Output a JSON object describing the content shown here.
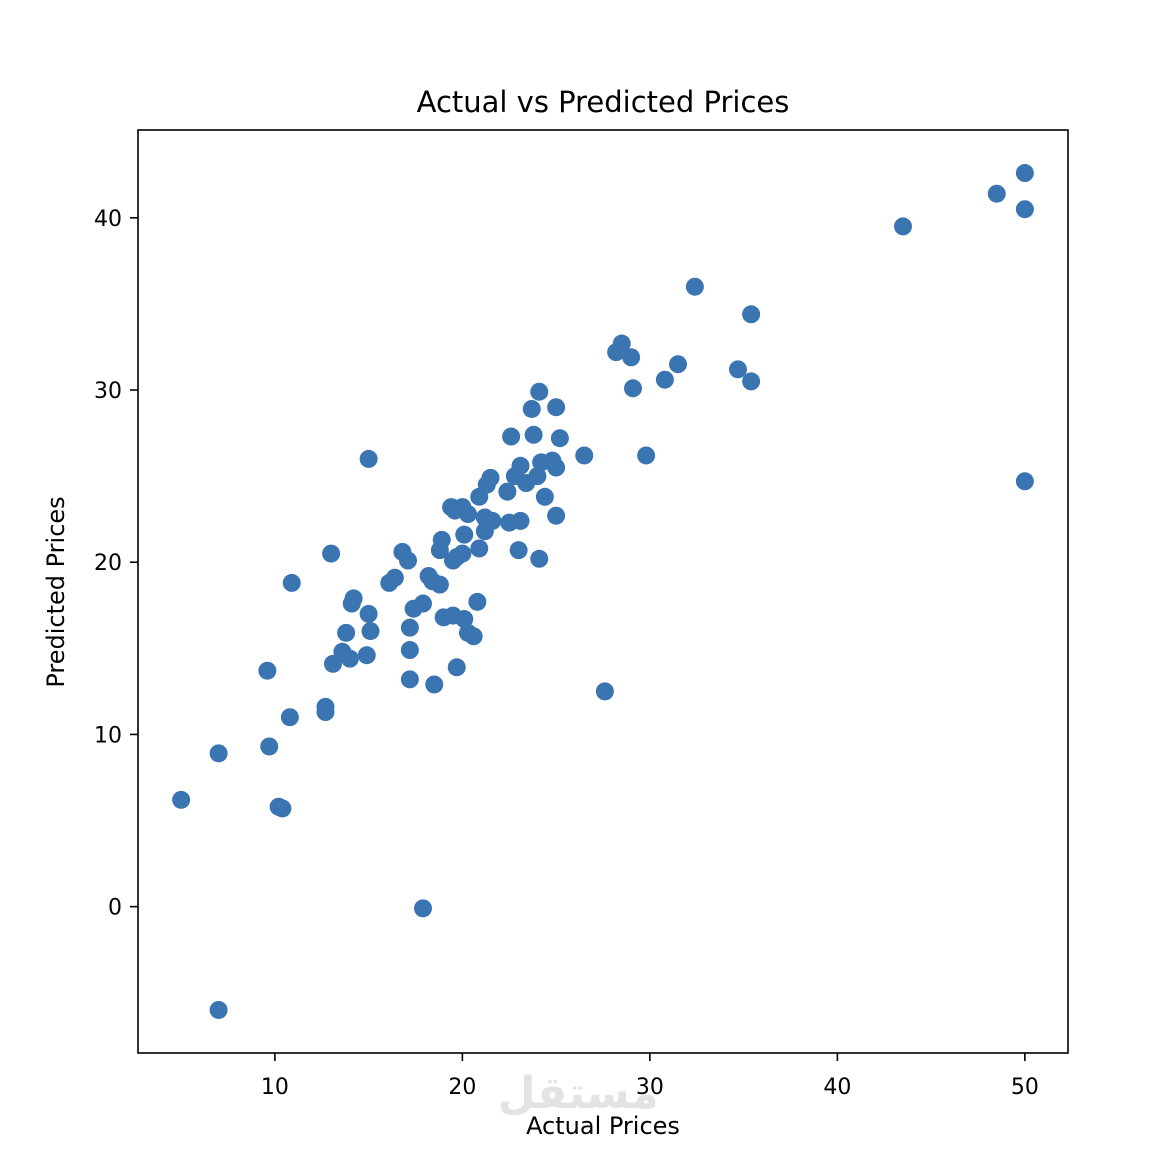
{
  "chart_data": {
    "type": "scatter",
    "title": "Actual vs Predicted Prices",
    "xlabel": "Actual Prices",
    "ylabel": "Predicted Prices",
    "xlim": [
      2.7,
      52.3
    ],
    "ylim": [
      -8.5,
      45.1
    ],
    "xticks": [
      10,
      20,
      30,
      40,
      50
    ],
    "yticks": [
      0,
      10,
      20,
      30,
      40
    ],
    "grid": false,
    "marker_color": "#3a74b1",
    "series": [
      {
        "points": [
          [
            50.0,
            42.6
          ],
          [
            48.5,
            41.4
          ],
          [
            50.0,
            40.5
          ],
          [
            43.5,
            39.5
          ],
          [
            50.0,
            24.7
          ],
          [
            32.4,
            36.0
          ],
          [
            35.4,
            34.4
          ],
          [
            28.5,
            32.7
          ],
          [
            28.2,
            32.2
          ],
          [
            29.0,
            31.9
          ],
          [
            31.5,
            31.5
          ],
          [
            34.7,
            31.2
          ],
          [
            30.8,
            30.6
          ],
          [
            35.4,
            30.5
          ],
          [
            29.1,
            30.1
          ],
          [
            29.8,
            26.2
          ],
          [
            26.5,
            26.2
          ],
          [
            27.6,
            12.5
          ],
          [
            24.1,
            29.9
          ],
          [
            23.7,
            28.9
          ],
          [
            25.0,
            29.0
          ],
          [
            23.8,
            27.4
          ],
          [
            22.6,
            27.3
          ],
          [
            25.2,
            27.2
          ],
          [
            24.8,
            25.9
          ],
          [
            24.2,
            25.8
          ],
          [
            23.1,
            25.6
          ],
          [
            25.0,
            25.5
          ],
          [
            22.8,
            25.0
          ],
          [
            23.4,
            24.6
          ],
          [
            24.0,
            25.0
          ],
          [
            21.5,
            24.9
          ],
          [
            21.3,
            24.5
          ],
          [
            22.4,
            24.1
          ],
          [
            20.9,
            23.8
          ],
          [
            24.4,
            23.8
          ],
          [
            19.4,
            23.2
          ],
          [
            19.6,
            23.0
          ],
          [
            20.0,
            23.2
          ],
          [
            20.3,
            22.8
          ],
          [
            21.2,
            22.6
          ],
          [
            21.6,
            22.4
          ],
          [
            22.5,
            22.3
          ],
          [
            23.1,
            22.4
          ],
          [
            25.0,
            22.7
          ],
          [
            20.1,
            21.6
          ],
          [
            21.2,
            21.8
          ],
          [
            18.9,
            21.3
          ],
          [
            18.8,
            20.7
          ],
          [
            19.7,
            20.3
          ],
          [
            19.5,
            20.1
          ],
          [
            20.0,
            20.5
          ],
          [
            20.9,
            20.8
          ],
          [
            23.0,
            20.7
          ],
          [
            24.1,
            20.2
          ],
          [
            16.8,
            20.6
          ],
          [
            17.1,
            20.1
          ],
          [
            13.0,
            20.5
          ],
          [
            18.2,
            19.2
          ],
          [
            18.4,
            18.9
          ],
          [
            18.8,
            18.7
          ],
          [
            16.4,
            19.1
          ],
          [
            16.1,
            18.8
          ],
          [
            10.9,
            18.8
          ],
          [
            14.2,
            17.9
          ],
          [
            14.1,
            17.6
          ],
          [
            17.4,
            17.3
          ],
          [
            17.9,
            17.6
          ],
          [
            20.8,
            17.7
          ],
          [
            15.0,
            17.0
          ],
          [
            19.0,
            16.8
          ],
          [
            19.5,
            16.9
          ],
          [
            20.1,
            16.7
          ],
          [
            20.3,
            15.9
          ],
          [
            20.6,
            15.7
          ],
          [
            17.2,
            16.2
          ],
          [
            15.1,
            16.0
          ],
          [
            13.8,
            15.9
          ],
          [
            13.6,
            14.8
          ],
          [
            14.0,
            14.4
          ],
          [
            14.9,
            14.6
          ],
          [
            13.1,
            14.1
          ],
          [
            17.2,
            14.9
          ],
          [
            19.7,
            13.9
          ],
          [
            9.6,
            13.7
          ],
          [
            17.2,
            13.2
          ],
          [
            18.5,
            12.9
          ],
          [
            12.7,
            11.6
          ],
          [
            12.7,
            11.3
          ],
          [
            10.8,
            11.0
          ],
          [
            9.7,
            9.3
          ],
          [
            7.0,
            8.9
          ],
          [
            5.0,
            6.2
          ],
          [
            10.2,
            5.8
          ],
          [
            10.4,
            5.7
          ],
          [
            17.9,
            -0.1
          ],
          [
            7.0,
            -6.0
          ],
          [
            15.0,
            26.0
          ]
        ]
      }
    ]
  }
}
